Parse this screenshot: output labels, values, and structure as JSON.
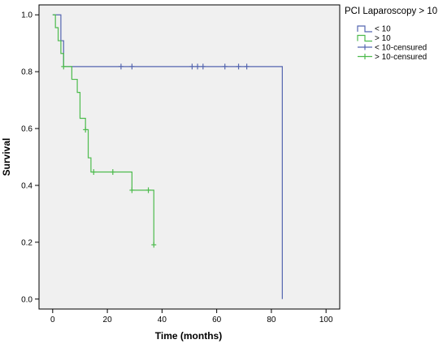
{
  "chart_data": {
    "type": "line",
    "step": true,
    "xlabel": "Time (months)",
    "ylabel": "Survival",
    "xlim": [
      -5,
      105
    ],
    "ylim": [
      -0.035,
      1.035
    ],
    "xticks": [
      0,
      20,
      40,
      60,
      80,
      100
    ],
    "yticks": [
      0.0,
      0.2,
      0.4,
      0.6,
      0.8,
      1.0
    ],
    "xtick_labels": [
      "0",
      "20",
      "40",
      "60",
      "80",
      "100"
    ],
    "ytick_labels": [
      "0.0",
      "0.2",
      "0.4",
      "0.6",
      "0.8",
      "1.0"
    ],
    "grid": false,
    "plot_background": "#f0f0f0",
    "legend": {
      "title": "PCI Laparoscopy > 10",
      "placement": "right",
      "entries": [
        {
          "label": "< 10",
          "kind": "line",
          "color": "#5566b0"
        },
        {
          "label": "> 10",
          "kind": "line",
          "color": "#4dbb4d"
        },
        {
          "label": "< 10-censured",
          "kind": "censor",
          "color": "#5566b0"
        },
        {
          "label": "> 10-censured",
          "kind": "censor",
          "color": "#4dbb4d"
        }
      ]
    },
    "series": [
      {
        "name": "< 10",
        "color": "#5566b0",
        "x": [
          0,
          2,
          3,
          4,
          84,
          84
        ],
        "y": [
          1.0,
          1.0,
          0.909,
          0.818,
          0.818,
          0.0
        ],
        "censored_x": [
          25,
          29,
          51,
          53,
          55,
          63,
          68,
          71
        ],
        "censored_y": [
          0.818,
          0.818,
          0.818,
          0.818,
          0.818,
          0.818,
          0.818,
          0.818
        ]
      },
      {
        "name": "> 10",
        "color": "#4dbb4d",
        "x": [
          0,
          1,
          2,
          3,
          4,
          5,
          7,
          9,
          10,
          12,
          13,
          14,
          29,
          37,
          37
        ],
        "y": [
          1.0,
          0.955,
          0.909,
          0.864,
          0.818,
          0.818,
          0.773,
          0.727,
          0.636,
          0.596,
          0.497,
          0.447,
          0.383,
          0.383,
          0.191
        ],
        "censored_x": [
          4,
          12,
          15,
          22,
          29,
          35,
          37
        ],
        "censored_y": [
          0.818,
          0.596,
          0.447,
          0.447,
          0.383,
          0.383,
          0.191
        ]
      }
    ]
  }
}
